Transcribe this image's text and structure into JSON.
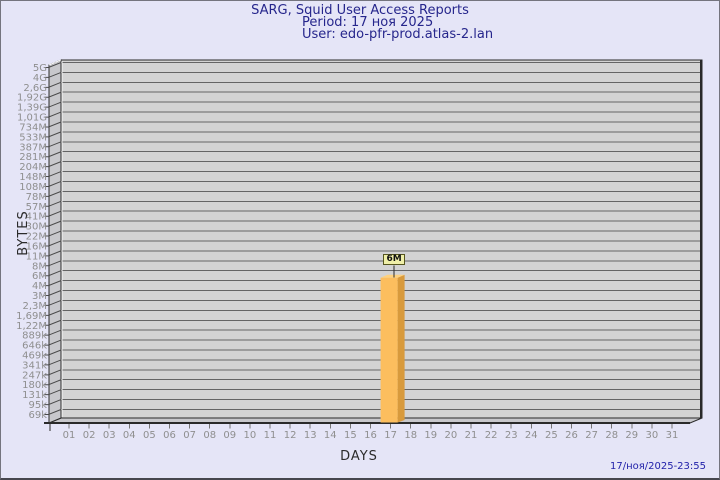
{
  "header": {
    "title": "SARG, Squid User Access Reports",
    "period_line": "Period: 17 ноя 2025",
    "user_line": "User: edo-pfr-prod.atlas-2.lan"
  },
  "footer": {
    "timestamp": "17/ноя/2025-23:55"
  },
  "chart_data": {
    "type": "bar",
    "style": "3d-bar",
    "title": "SARG, Squid User Access Reports",
    "subtitle_period": "Period: 17 ноя 2025",
    "subtitle_user": "User: edo-pfr-prod.atlas-2.lan",
    "xlabel": "DAYS",
    "ylabel": "BYTES",
    "y_scale": "logarithmic",
    "y_tick_labels": [
      "5G",
      "4G",
      "2,6G",
      "1,92G",
      "1,39G",
      "1,01G",
      "734M",
      "533M",
      "387M",
      "281M",
      "204M",
      "148M",
      "108M",
      "78M",
      "57M",
      "41M",
      "30M",
      "22M",
      "16M",
      "11M",
      "8M",
      "6M",
      "4M",
      "3M",
      "2,3M",
      "1,69M",
      "1,22M",
      "889k",
      "646k",
      "469k",
      "341k",
      "247k",
      "180k",
      "131k",
      "95k",
      "69k"
    ],
    "categories": [
      "01",
      "02",
      "03",
      "04",
      "05",
      "06",
      "07",
      "08",
      "09",
      "10",
      "11",
      "12",
      "13",
      "14",
      "15",
      "16",
      "17",
      "18",
      "19",
      "20",
      "21",
      "22",
      "23",
      "24",
      "25",
      "26",
      "27",
      "28",
      "29",
      "30",
      "31"
    ],
    "bars": [
      {
        "day": "17",
        "value_label": "6M",
        "value_bytes_approx": 6000000
      }
    ],
    "grid": true,
    "legend_position": "none",
    "colors": {
      "page_bg": "#E5E5F7",
      "grid_bg": "#D3D3D3",
      "wall_bg": "#C8C8CC",
      "grid_line": "#646464",
      "frame_dark": "#2a2a2a",
      "highlight": "#F4F4F4",
      "bar_front": "#FCBE5E",
      "bar_side": "#D89A3C",
      "bar_top": "#FFD27E",
      "title_text": "#26268C",
      "timestamp_text": "#2222AA",
      "axis_text": "#8F8F8F",
      "axis_title_text": "#2b2b2b",
      "label_box_bg": "#EFEFA8",
      "label_box_border": "#55551E"
    }
  }
}
